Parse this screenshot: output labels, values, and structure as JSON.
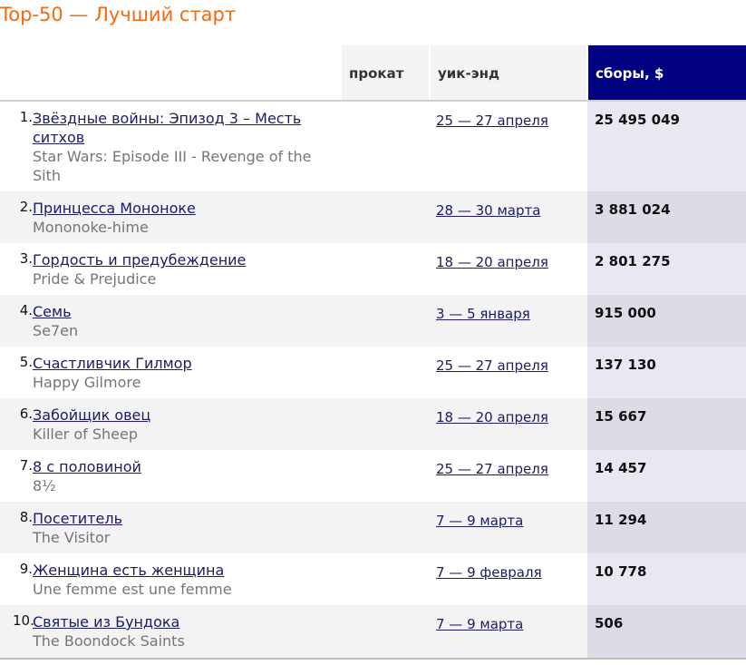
{
  "title": "Top-50 — Лучший старт",
  "columns": {
    "release": "прокат",
    "weekend": "уик-энд",
    "gross": "сборы, $"
  },
  "rows": [
    {
      "rank": "1.",
      "title_ru": "Звёздные войны: Эпизод 3 – Месть ситхов",
      "title_orig": "Star Wars: Episode III - Revenge of the Sith",
      "weekend": "25 — 27 апреля",
      "gross": "25 495 049"
    },
    {
      "rank": "2.",
      "title_ru": "Принцесса Мононоке",
      "title_orig": "Mononoke-hime",
      "weekend": "28 — 30 марта",
      "gross": "3 881 024"
    },
    {
      "rank": "3.",
      "title_ru": "Гордость и предубеждение",
      "title_orig": "Pride & Prejudice",
      "weekend": "18 — 20 апреля",
      "gross": "2 801 275"
    },
    {
      "rank": "4.",
      "title_ru": "Семь",
      "title_orig": "Se7en",
      "weekend": "3 — 5 января",
      "gross": "915 000"
    },
    {
      "rank": "5.",
      "title_ru": "Счастливчик Гилмор",
      "title_orig": "Happy Gilmore",
      "weekend": "25 — 27 апреля",
      "gross": "137 130"
    },
    {
      "rank": "6.",
      "title_ru": "Забойщик овец",
      "title_orig": "Killer of Sheep",
      "weekend": "18 — 20 апреля",
      "gross": "15 667"
    },
    {
      "rank": "7.",
      "title_ru": "8 с половиной",
      "title_orig": "8½",
      "weekend": "25 — 27 апреля",
      "gross": "14 457"
    },
    {
      "rank": "8.",
      "title_ru": "Посетитель",
      "title_orig": "The Visitor",
      "weekend": "7 — 9 марта",
      "gross": "11 294"
    },
    {
      "rank": "9.",
      "title_ru": "Женщина есть женщина",
      "title_orig": "Une femme est une femme",
      "weekend": "7 — 9 февраля",
      "gross": "10 778"
    },
    {
      "rank": "10.",
      "title_ru": "Святые из Бундока",
      "title_orig": "The Boondock Saints",
      "weekend": "7 — 9 марта",
      "gross": "506"
    }
  ],
  "colors": {
    "title": "#f26a0f",
    "gross_header_bg": "#000080",
    "link": "#1b1b66"
  }
}
